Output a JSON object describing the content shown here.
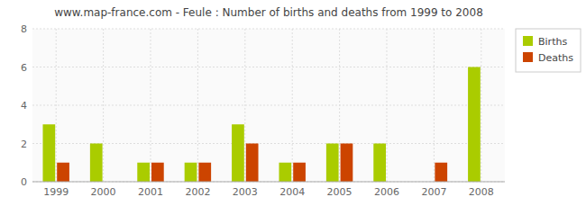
{
  "chart_data": {
    "type": "bar",
    "title": "www.map-france.com - Feule : Number of births and deaths from 1999 to 2008",
    "categories": [
      "1999",
      "2000",
      "2001",
      "2002",
      "2003",
      "2004",
      "2005",
      "2006",
      "2007",
      "2008"
    ],
    "series": [
      {
        "name": "Births",
        "color": "#aacc00",
        "values": [
          3,
          2,
          1,
          1,
          3,
          1,
          2,
          2,
          0,
          6
        ]
      },
      {
        "name": "Deaths",
        "color": "#cc4400",
        "values": [
          1,
          0,
          1,
          1,
          2,
          1,
          2,
          0,
          1,
          0
        ]
      }
    ],
    "ylim": [
      0,
      8
    ],
    "yticks": [
      0,
      2,
      4,
      6,
      8
    ],
    "grid": true,
    "legend": "upper right"
  }
}
